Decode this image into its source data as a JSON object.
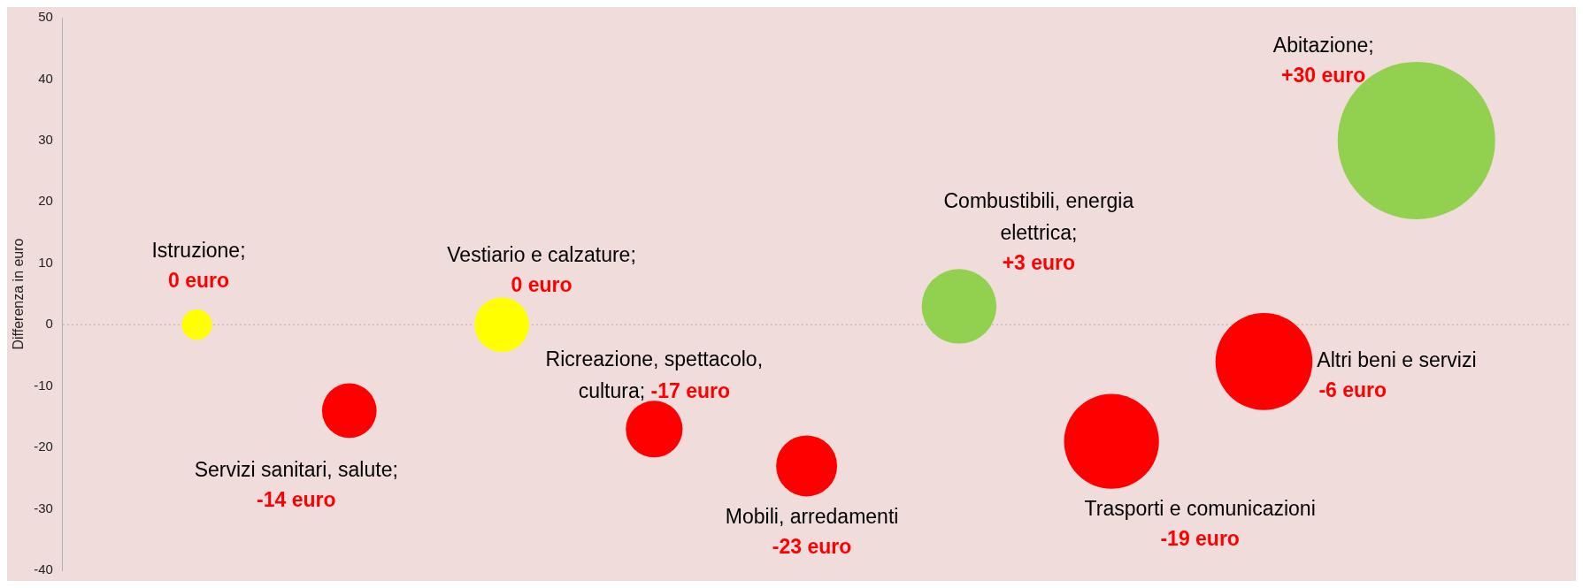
{
  "chart_data": {
    "type": "bubble",
    "ylabel": "Differenza in euro",
    "categories": [
      null,
      null,
      null,
      null,
      null,
      null,
      null,
      null,
      null
    ],
    "ylim": [
      -40,
      50
    ],
    "yticks": [
      -40,
      -30,
      -20,
      -10,
      0,
      10,
      20,
      30,
      40,
      50
    ],
    "grid": false,
    "legend": false,
    "ref_lines": [
      {
        "axis": "y",
        "value": 0,
        "color": "#b8a8a8",
        "line_style": "dotted"
      }
    ],
    "series": [
      {
        "name": "Istruzione;",
        "color": "#ffff00",
        "values": [
          0,
          null,
          null,
          null,
          null,
          null,
          null,
          null,
          null
        ],
        "sizes": [
          0.037,
          null,
          null,
          null,
          null,
          null,
          null,
          null,
          null
        ],
        "value_labels": [
          "0 euro",
          null,
          null,
          null,
          null,
          null,
          null,
          null,
          null
        ]
      },
      {
        "name": "Servizi sanitari, salute;",
        "color": "#ff0000",
        "values": [
          null,
          -14,
          null,
          null,
          null,
          null,
          null,
          null,
          null
        ],
        "sizes": [
          null,
          0.12,
          null,
          null,
          null,
          null,
          null,
          null,
          null
        ],
        "value_labels": [
          null,
          "-14 euro",
          null,
          null,
          null,
          null,
          null,
          null,
          null
        ]
      },
      {
        "name": "Vestiario e calzature;",
        "color": "#ffff00",
        "values": [
          null,
          null,
          0,
          null,
          null,
          null,
          null,
          null,
          null
        ],
        "sizes": [
          null,
          null,
          0.12,
          null,
          null,
          null,
          null,
          null,
          null
        ],
        "value_labels": [
          null,
          null,
          "0 euro",
          null,
          null,
          null,
          null,
          null,
          null
        ]
      },
      {
        "name": "Ricreazione, spettacolo, cultura;",
        "color": "#ff0000",
        "values": [
          null,
          null,
          null,
          -17,
          null,
          null,
          null,
          null,
          null
        ],
        "sizes": [
          null,
          null,
          null,
          0.13,
          null,
          null,
          null,
          null,
          null
        ],
        "value_labels": [
          null,
          null,
          null,
          "-17 euro",
          null,
          null,
          null,
          null,
          null
        ]
      },
      {
        "name": "Mobili, arredamenti",
        "color": "#ff0000",
        "values": [
          null,
          null,
          null,
          null,
          -23,
          null,
          null,
          null,
          null
        ],
        "sizes": [
          null,
          null,
          null,
          null,
          0.15,
          null,
          null,
          null,
          null
        ],
        "value_labels": [
          null,
          null,
          null,
          null,
          "-23 euro",
          null,
          null,
          null,
          null
        ]
      },
      {
        "name": "Combustibili, energia elettrica;",
        "color": "#92d050",
        "values": [
          null,
          null,
          null,
          null,
          null,
          3,
          null,
          null,
          null
        ],
        "sizes": [
          null,
          null,
          null,
          null,
          null,
          0.225,
          null,
          null,
          null
        ],
        "value_labels": [
          null,
          null,
          null,
          null,
          null,
          "+3 euro",
          null,
          null,
          null
        ]
      },
      {
        "name": "Trasporti e comunicazioni",
        "color": "#ff0000",
        "values": [
          null,
          null,
          null,
          null,
          null,
          null,
          -19,
          null,
          null
        ],
        "sizes": [
          null,
          null,
          null,
          null,
          null,
          null,
          0.363,
          null,
          null
        ],
        "value_labels": [
          null,
          null,
          null,
          null,
          null,
          null,
          "-19 euro",
          null,
          null
        ]
      },
      {
        "name": "Altri beni e servizi",
        "color": "#ff0000",
        "values": [
          null,
          null,
          null,
          null,
          null,
          null,
          null,
          -6,
          null
        ],
        "sizes": [
          null,
          null,
          null,
          null,
          null,
          null,
          null,
          0.379,
          null
        ],
        "value_labels": [
          null,
          null,
          null,
          null,
          null,
          null,
          null,
          "-6 euro",
          null
        ]
      },
      {
        "name": "Abitazione;",
        "color": "#92d050",
        "values": [
          null,
          null,
          null,
          null,
          null,
          null,
          null,
          null,
          30
        ],
        "sizes": [
          null,
          null,
          null,
          null,
          null,
          null,
          null,
          null,
          1
        ],
        "value_labels": [
          null,
          null,
          null,
          null,
          null,
          null,
          null,
          null,
          "+30 euro"
        ]
      }
    ]
  }
}
